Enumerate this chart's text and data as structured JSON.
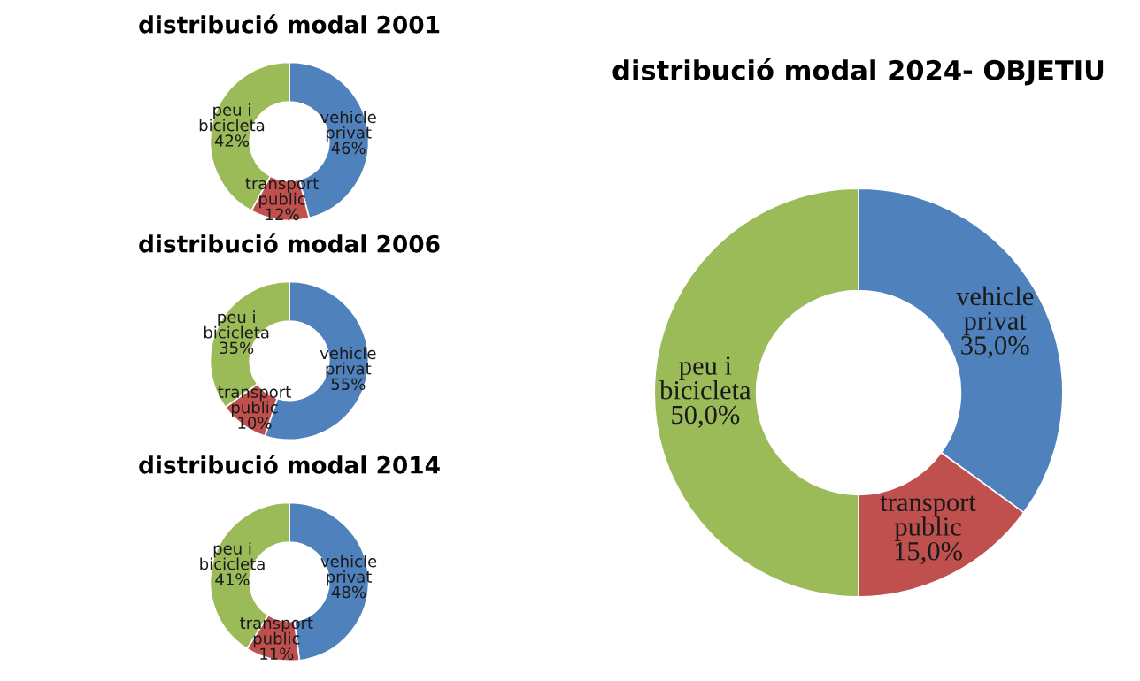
{
  "chart_data": [
    {
      "type": "donut",
      "title": "distribució modal 2001",
      "categories": [
        "vehicle\nprivat",
        "transport\npublic",
        "peu i\nbicicleta"
      ],
      "values": [
        46,
        12,
        42
      ],
      "colors": [
        "#4f81bd",
        "#c0504d",
        "#9bbb59"
      ],
      "value_labels": [
        "46%",
        "12%",
        "42%"
      ]
    },
    {
      "type": "donut",
      "title": "distribució modal 2006",
      "categories": [
        "vehicle\nprivat",
        "transport\npublic",
        "peu i\nbicicleta"
      ],
      "values": [
        55,
        10,
        35
      ],
      "colors": [
        "#4f81bd",
        "#c0504d",
        "#9bbb59"
      ],
      "value_labels": [
        "55%",
        "10%",
        "35%"
      ]
    },
    {
      "type": "donut",
      "title": "distribució modal 2014",
      "categories": [
        "vehicle\nprivat",
        "transport\npublic",
        "peu i\nbicicleta"
      ],
      "values": [
        48,
        11,
        41
      ],
      "colors": [
        "#4f81bd",
        "#c0504d",
        "#9bbb59"
      ],
      "value_labels": [
        "48%",
        "11%",
        "41%"
      ]
    },
    {
      "type": "donut",
      "title": "distribució modal 2024- OBJETIU",
      "categories": [
        "vehicle\nprivat",
        "transport\npublic",
        "peu i\nbicicleta"
      ],
      "values": [
        35,
        15,
        50
      ],
      "colors": [
        "#4f81bd",
        "#c0504d",
        "#9bbb59"
      ],
      "value_labels": [
        "35,0%",
        "15,0%",
        "50,0%"
      ]
    }
  ]
}
